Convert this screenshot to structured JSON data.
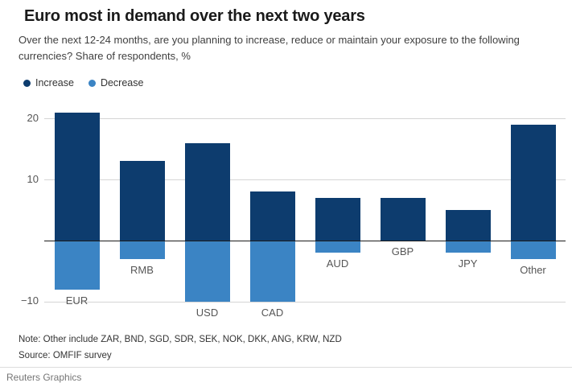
{
  "header": {
    "title": "Euro most in demand over the next two years",
    "subtitle": "Over the next 12-24 months, are you planning to increase, reduce or maintain your exposure to the following currencies? Share of respondents, %"
  },
  "legend": {
    "items": [
      {
        "label": "Increase",
        "color": "#0d3c6e"
      },
      {
        "label": "Decrease",
        "color": "#3b84c4"
      }
    ]
  },
  "chart_data": {
    "type": "bar",
    "categories": [
      "EUR",
      "RMB",
      "USD",
      "CAD",
      "AUD",
      "GBP",
      "JPY",
      "Other"
    ],
    "series": [
      {
        "name": "Increase",
        "color": "#0d3c6e",
        "values": [
          21,
          13,
          16,
          8,
          7,
          7,
          5,
          19
        ]
      },
      {
        "name": "Decrease",
        "color": "#3b84c4",
        "values": [
          -8,
          -3,
          -10,
          -10,
          -2,
          0,
          -2,
          -3
        ]
      }
    ],
    "title": "Euro most in demand over the next two years",
    "xlabel": "",
    "ylabel": "Share of respondents, %",
    "yticks": [
      20,
      10,
      -10
    ],
    "ylim": [
      -12,
      22
    ],
    "grid": "horizontal-light",
    "zero_line": true,
    "legend_position": "top-left"
  },
  "footnotes": {
    "note": "Note: Other include ZAR, BND, SGD, SDR, SEK, NOK, DKK, ANG, KRW, NZD",
    "source": "Source: OMFIF survey"
  },
  "footer": {
    "credit": "Reuters Graphics"
  }
}
